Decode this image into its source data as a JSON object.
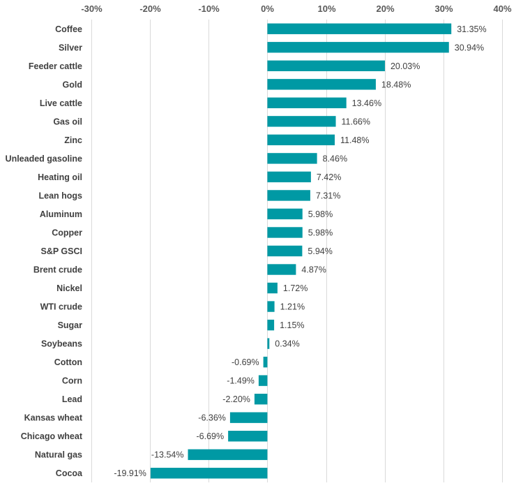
{
  "chart_data": {
    "type": "bar",
    "orientation": "horizontal",
    "title": "",
    "xlabel": "",
    "ylabel": "",
    "xlim": [
      -0.3,
      0.4
    ],
    "x_ticks": [
      -0.3,
      -0.2,
      -0.1,
      0,
      0.1,
      0.2,
      0.3,
      0.4
    ],
    "x_tick_labels": [
      "-30%",
      "-20%",
      "-10%",
      "0%",
      "10%",
      "20%",
      "30%",
      "40%"
    ],
    "x_axis_position": "top",
    "grid": true,
    "legend": "none",
    "bar_color": "#0099A4",
    "categories": [
      "Coffee",
      "Silver",
      "Feeder cattle",
      "Gold",
      "Live cattle",
      "Gas oil",
      "Zinc",
      "Unleaded gasoline",
      "Heating oil",
      "Lean hogs",
      "Aluminum",
      "Copper",
      "S&P GSCI",
      "Brent crude",
      "Nickel",
      "WTI crude",
      "Sugar",
      "Soybeans",
      "Cotton",
      "Corn",
      "Lead",
      "Kansas wheat",
      "Chicago wheat",
      "Natural gas",
      "Cocoa"
    ],
    "values": [
      0.3135,
      0.3094,
      0.2003,
      0.1848,
      0.1346,
      0.1166,
      0.1148,
      0.0846,
      0.0742,
      0.0731,
      0.0598,
      0.0598,
      0.0594,
      0.0487,
      0.0172,
      0.0121,
      0.0115,
      0.0034,
      -0.0069,
      -0.0149,
      -0.022,
      -0.0636,
      -0.0669,
      -0.1354,
      -0.1991
    ],
    "data_labels": [
      "31.35%",
      "30.94%",
      "20.03%",
      "18.48%",
      "13.46%",
      "11.66%",
      "11.48%",
      "8.46%",
      "7.42%",
      "7.31%",
      "5.98%",
      "5.98%",
      "5.94%",
      "4.87%",
      "1.72%",
      "1.21%",
      "1.15%",
      "0.34%",
      "-0.69%",
      "-1.49%",
      "-2.20%",
      "-6.36%",
      "-6.69%",
      "-13.54%",
      "-19.91%"
    ]
  }
}
